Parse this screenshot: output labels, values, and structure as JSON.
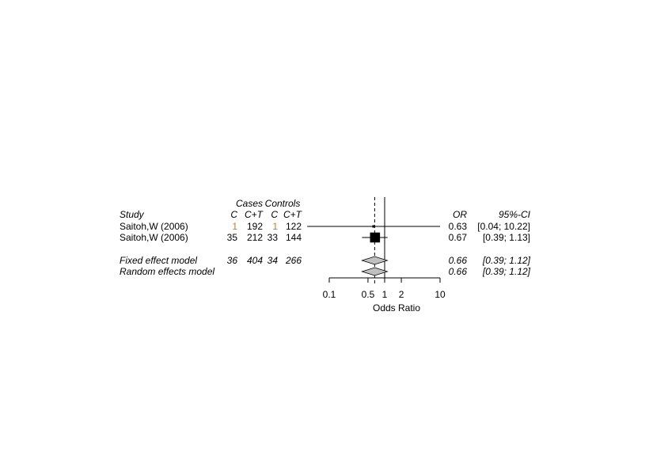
{
  "chart_data": {
    "type": "forest",
    "group_headers": [
      "Cases",
      "Controls"
    ],
    "column_headers": {
      "study": "Study",
      "cases_c": "C",
      "cases_ct": "C+T",
      "controls_c": "C",
      "controls_ct": "C+T",
      "or": "OR",
      "ci": "95%-CI"
    },
    "studies": [
      {
        "name": "Saitoh,W (2006)",
        "cases_c": "1",
        "cases_ct": "192",
        "controls_c": "1",
        "controls_ct": "122",
        "or": 0.63,
        "ci_low": 0.04,
        "ci_high": 10.22,
        "or_text": "0.63",
        "ci_text": "[0.04; 10.22]",
        "weight": 0.4
      },
      {
        "name": "Saitoh,W (2006)",
        "cases_c": "35",
        "cases_ct": "212",
        "controls_c": "33",
        "controls_ct": "144",
        "or": 0.67,
        "ci_low": 0.39,
        "ci_high": 1.13,
        "or_text": "0.67",
        "ci_text": "[0.39;  1.13]",
        "weight": 11.0
      }
    ],
    "summaries": [
      {
        "name": "Fixed effect model",
        "cases_c": "36",
        "cases_ct": "404",
        "controls_c": "34",
        "controls_ct": "266",
        "or": 0.66,
        "ci_low": 0.39,
        "ci_high": 1.12,
        "or_text": "0.66",
        "ci_text": "[0.39;  1.12]"
      },
      {
        "name": "Random effects model",
        "cases_c": "",
        "cases_ct": "",
        "controls_c": "",
        "controls_ct": "",
        "or": 0.66,
        "ci_low": 0.39,
        "ci_high": 1.12,
        "or_text": "0.66",
        "ci_text": "[0.39;  1.12]"
      }
    ],
    "x_scale": "log",
    "xlim": [
      0.1,
      10
    ],
    "x_ticks": [
      0.1,
      0.5,
      1,
      2,
      10
    ],
    "x_tick_labels": [
      "0.1",
      "0.5",
      "1",
      "2",
      "10"
    ],
    "xlabel": "Odds Ratio",
    "null_value": 1,
    "colors": {
      "ink": "#000000",
      "diamond_fill": "#c0c0c0",
      "small_count": "#c87828"
    }
  }
}
